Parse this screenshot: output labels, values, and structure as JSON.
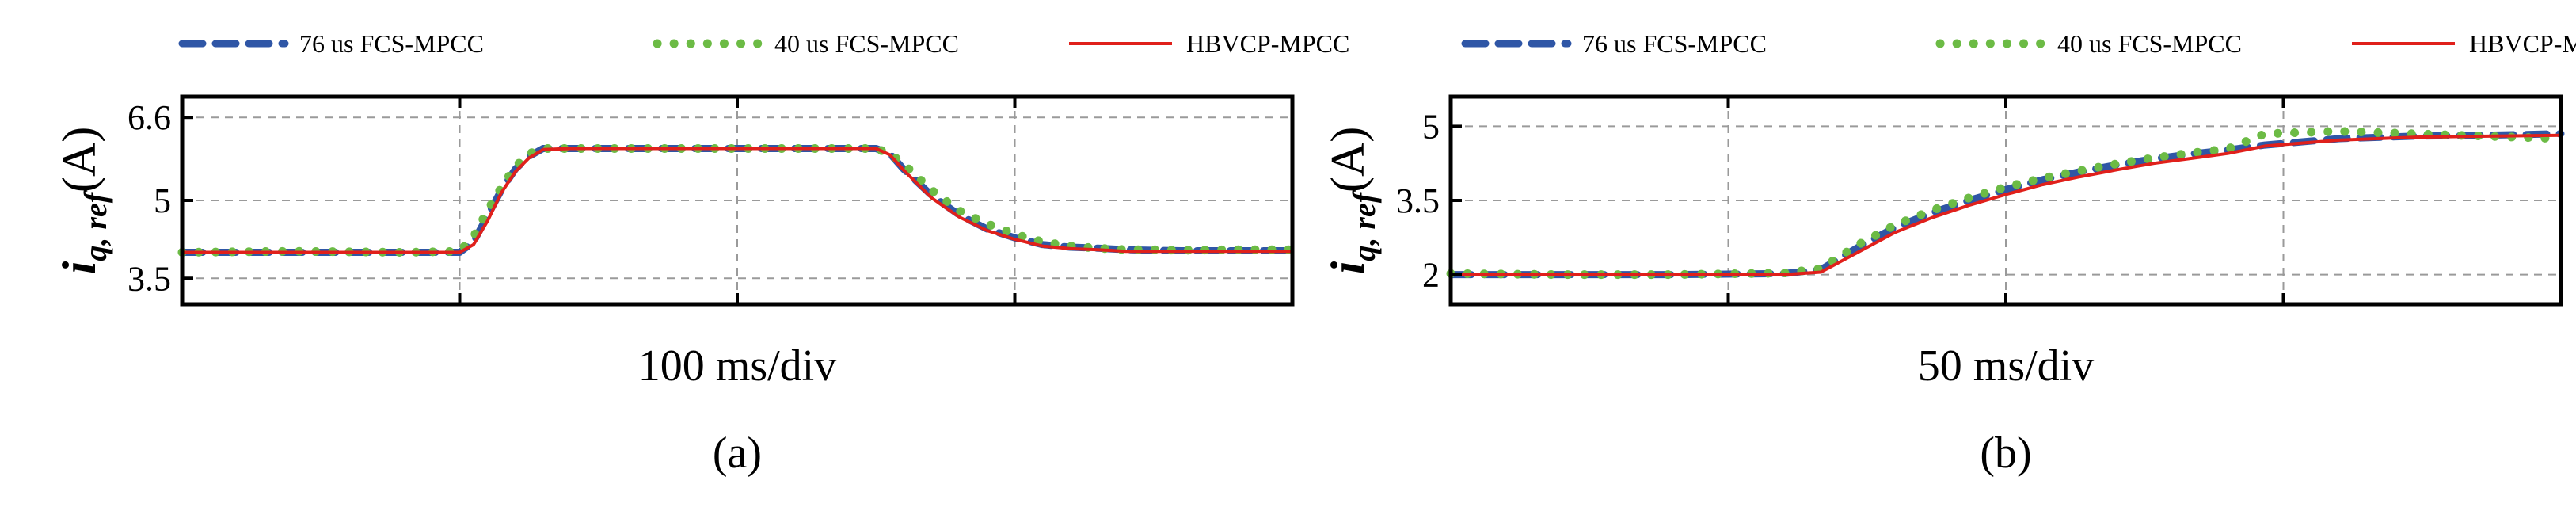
{
  "figure": {
    "legend": [
      "76 us FCS-MPCC",
      "40 us FCS-MPCC",
      "HBVCP-MPCC"
    ],
    "colors": {
      "76 us FCS-MPCC": "#2f56a6",
      "40 us FCS-MPCC": "#6cbb45",
      "HBVCP-MPCC": "#e0201b"
    }
  },
  "chart_data": [
    {
      "type": "line",
      "panel": "(a)",
      "xlabel": "100 ms/div",
      "ylabel_main": "i",
      "ylabel_sub": "q, ref",
      "ylabel_unit": "(A)",
      "ylim": [
        3.0,
        7.0
      ],
      "xlim": [
        0,
        400
      ],
      "yticks": [
        "3.5",
        "5",
        "6.6"
      ],
      "ytick_values": [
        3.5,
        5.0,
        6.6
      ],
      "grid": true,
      "legend_position": "top",
      "x": [
        0,
        40,
        80,
        100,
        105,
        110,
        115,
        120,
        125,
        130,
        140,
        150,
        180,
        210,
        240,
        250,
        255,
        260,
        270,
        280,
        290,
        300,
        310,
        320,
        330,
        340,
        350,
        360,
        380,
        400
      ],
      "series": [
        {
          "name": "76 us FCS-MPCC",
          "values": [
            4.0,
            4.0,
            4.0,
            4.0,
            4.2,
            4.7,
            5.2,
            5.6,
            5.85,
            6.0,
            6.0,
            6.0,
            6.0,
            6.0,
            6.0,
            6.0,
            5.9,
            5.6,
            5.1,
            4.72,
            4.45,
            4.28,
            4.15,
            4.1,
            4.08,
            4.05,
            4.04,
            4.03,
            4.03,
            4.03
          ]
        },
        {
          "name": "40 us FCS-MPCC",
          "values": [
            4.0,
            4.02,
            4.0,
            4.02,
            4.3,
            4.8,
            5.25,
            5.65,
            5.9,
            6.0,
            6.0,
            6.0,
            6.0,
            6.0,
            6.0,
            6.0,
            5.9,
            5.7,
            5.2,
            4.8,
            4.55,
            4.35,
            4.2,
            4.12,
            4.08,
            4.05,
            4.05,
            4.04,
            4.05,
            4.05
          ]
        },
        {
          "name": "HBVCP-MPCC",
          "values": [
            4.0,
            4.0,
            4.0,
            4.0,
            4.15,
            4.6,
            5.15,
            5.55,
            5.82,
            5.98,
            6.0,
            6.0,
            6.0,
            6.0,
            6.0,
            6.0,
            5.88,
            5.58,
            5.05,
            4.68,
            4.42,
            4.25,
            4.12,
            4.07,
            4.05,
            4.02,
            4.02,
            4.02,
            4.02,
            4.02
          ]
        }
      ]
    },
    {
      "type": "line",
      "panel": "(b)",
      "xlabel": "50 ms/div",
      "ylabel_main": "i",
      "ylabel_sub": "q, ref",
      "ylabel_unit": "(A)",
      "ylim": [
        1.4,
        5.6
      ],
      "xlim": [
        0,
        300
      ],
      "yticks": [
        "2",
        "3.5",
        "5"
      ],
      "ytick_values": [
        2.0,
        3.5,
        5.0
      ],
      "grid": true,
      "legend_position": "top",
      "x": [
        0,
        30,
        60,
        90,
        100,
        110,
        120,
        130,
        140,
        150,
        160,
        170,
        180,
        190,
        200,
        210,
        220,
        240,
        260,
        280,
        300
      ],
      "series": [
        {
          "name": "76 us FCS-MPCC",
          "values": [
            2.0,
            2.0,
            2.0,
            2.02,
            2.1,
            2.55,
            2.95,
            3.25,
            3.5,
            3.72,
            3.92,
            4.08,
            4.22,
            4.34,
            4.44,
            4.52,
            4.62,
            4.75,
            4.8,
            4.82,
            4.85
          ]
        },
        {
          "name": "40 us FCS-MPCC",
          "values": [
            2.02,
            2.0,
            2.0,
            2.03,
            2.12,
            2.6,
            3.0,
            3.3,
            3.55,
            3.77,
            3.95,
            4.1,
            4.24,
            4.36,
            4.46,
            4.54,
            4.85,
            4.9,
            4.85,
            4.8,
            4.75
          ]
        },
        {
          "name": "HBVCP-MPCC",
          "values": [
            2.0,
            2.0,
            2.0,
            2.0,
            2.05,
            2.45,
            2.85,
            3.15,
            3.4,
            3.62,
            3.82,
            3.98,
            4.12,
            4.25,
            4.35,
            4.45,
            4.6,
            4.72,
            4.78,
            4.8,
            4.82
          ]
        }
      ]
    }
  ]
}
